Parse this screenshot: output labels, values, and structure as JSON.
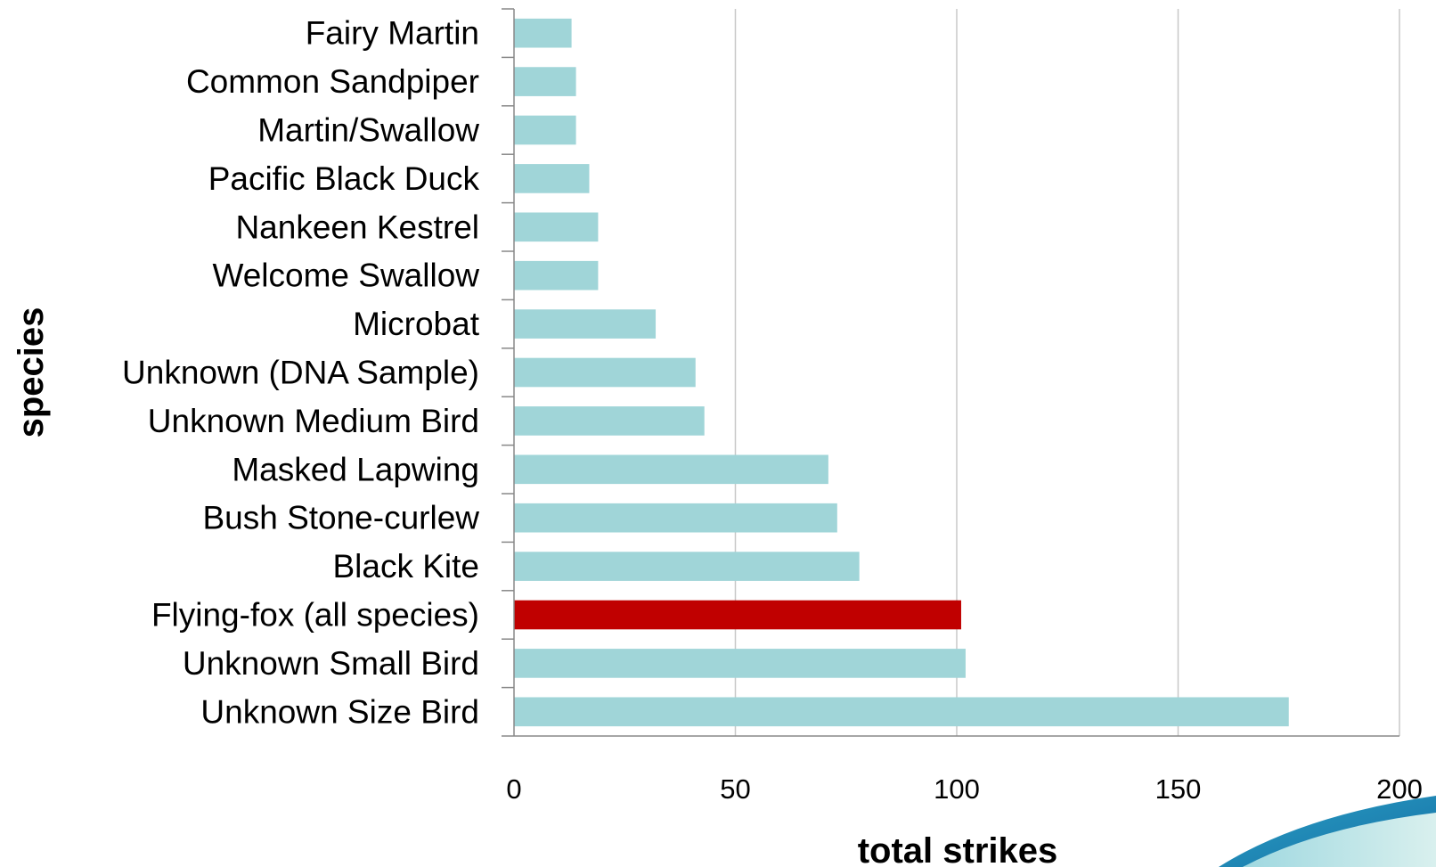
{
  "chart_data": {
    "type": "bar",
    "orientation": "horizontal",
    "categories": [
      "Fairy Martin",
      "Common Sandpiper",
      "Martin/Swallow",
      "Pacific Black Duck",
      "Nankeen Kestrel",
      "Welcome Swallow",
      "Microbat",
      "Unknown (DNA Sample)",
      "Unknown Medium Bird",
      "Masked Lapwing",
      "Bush Stone-curlew",
      "Black Kite",
      "Flying-fox (all species)",
      "Unknown Small Bird",
      "Unknown Size Bird"
    ],
    "values": [
      13,
      14,
      14,
      17,
      19,
      19,
      32,
      41,
      43,
      71,
      73,
      78,
      101,
      102,
      175
    ],
    "bar_colors": [
      "#a0d5d8",
      "#a0d5d8",
      "#a0d5d8",
      "#a0d5d8",
      "#a0d5d8",
      "#a0d5d8",
      "#a0d5d8",
      "#a0d5d8",
      "#a0d5d8",
      "#a0d5d8",
      "#a0d5d8",
      "#a0d5d8",
      "#c00000",
      "#a0d5d8",
      "#a0d5d8"
    ],
    "xlabel": "total strikes",
    "ylabel": "species",
    "xlim": [
      0,
      200
    ],
    "xticks": [
      0,
      50,
      100,
      150,
      200
    ],
    "xtick_labels": [
      "0",
      "50",
      "100",
      "150",
      "200"
    ],
    "grid": "vertical",
    "legend": "none"
  },
  "colors": {
    "bar_default": "#a0d5d8",
    "bar_highlight": "#c00000",
    "gridline": "#c8c8c8",
    "axis": "#888888"
  }
}
